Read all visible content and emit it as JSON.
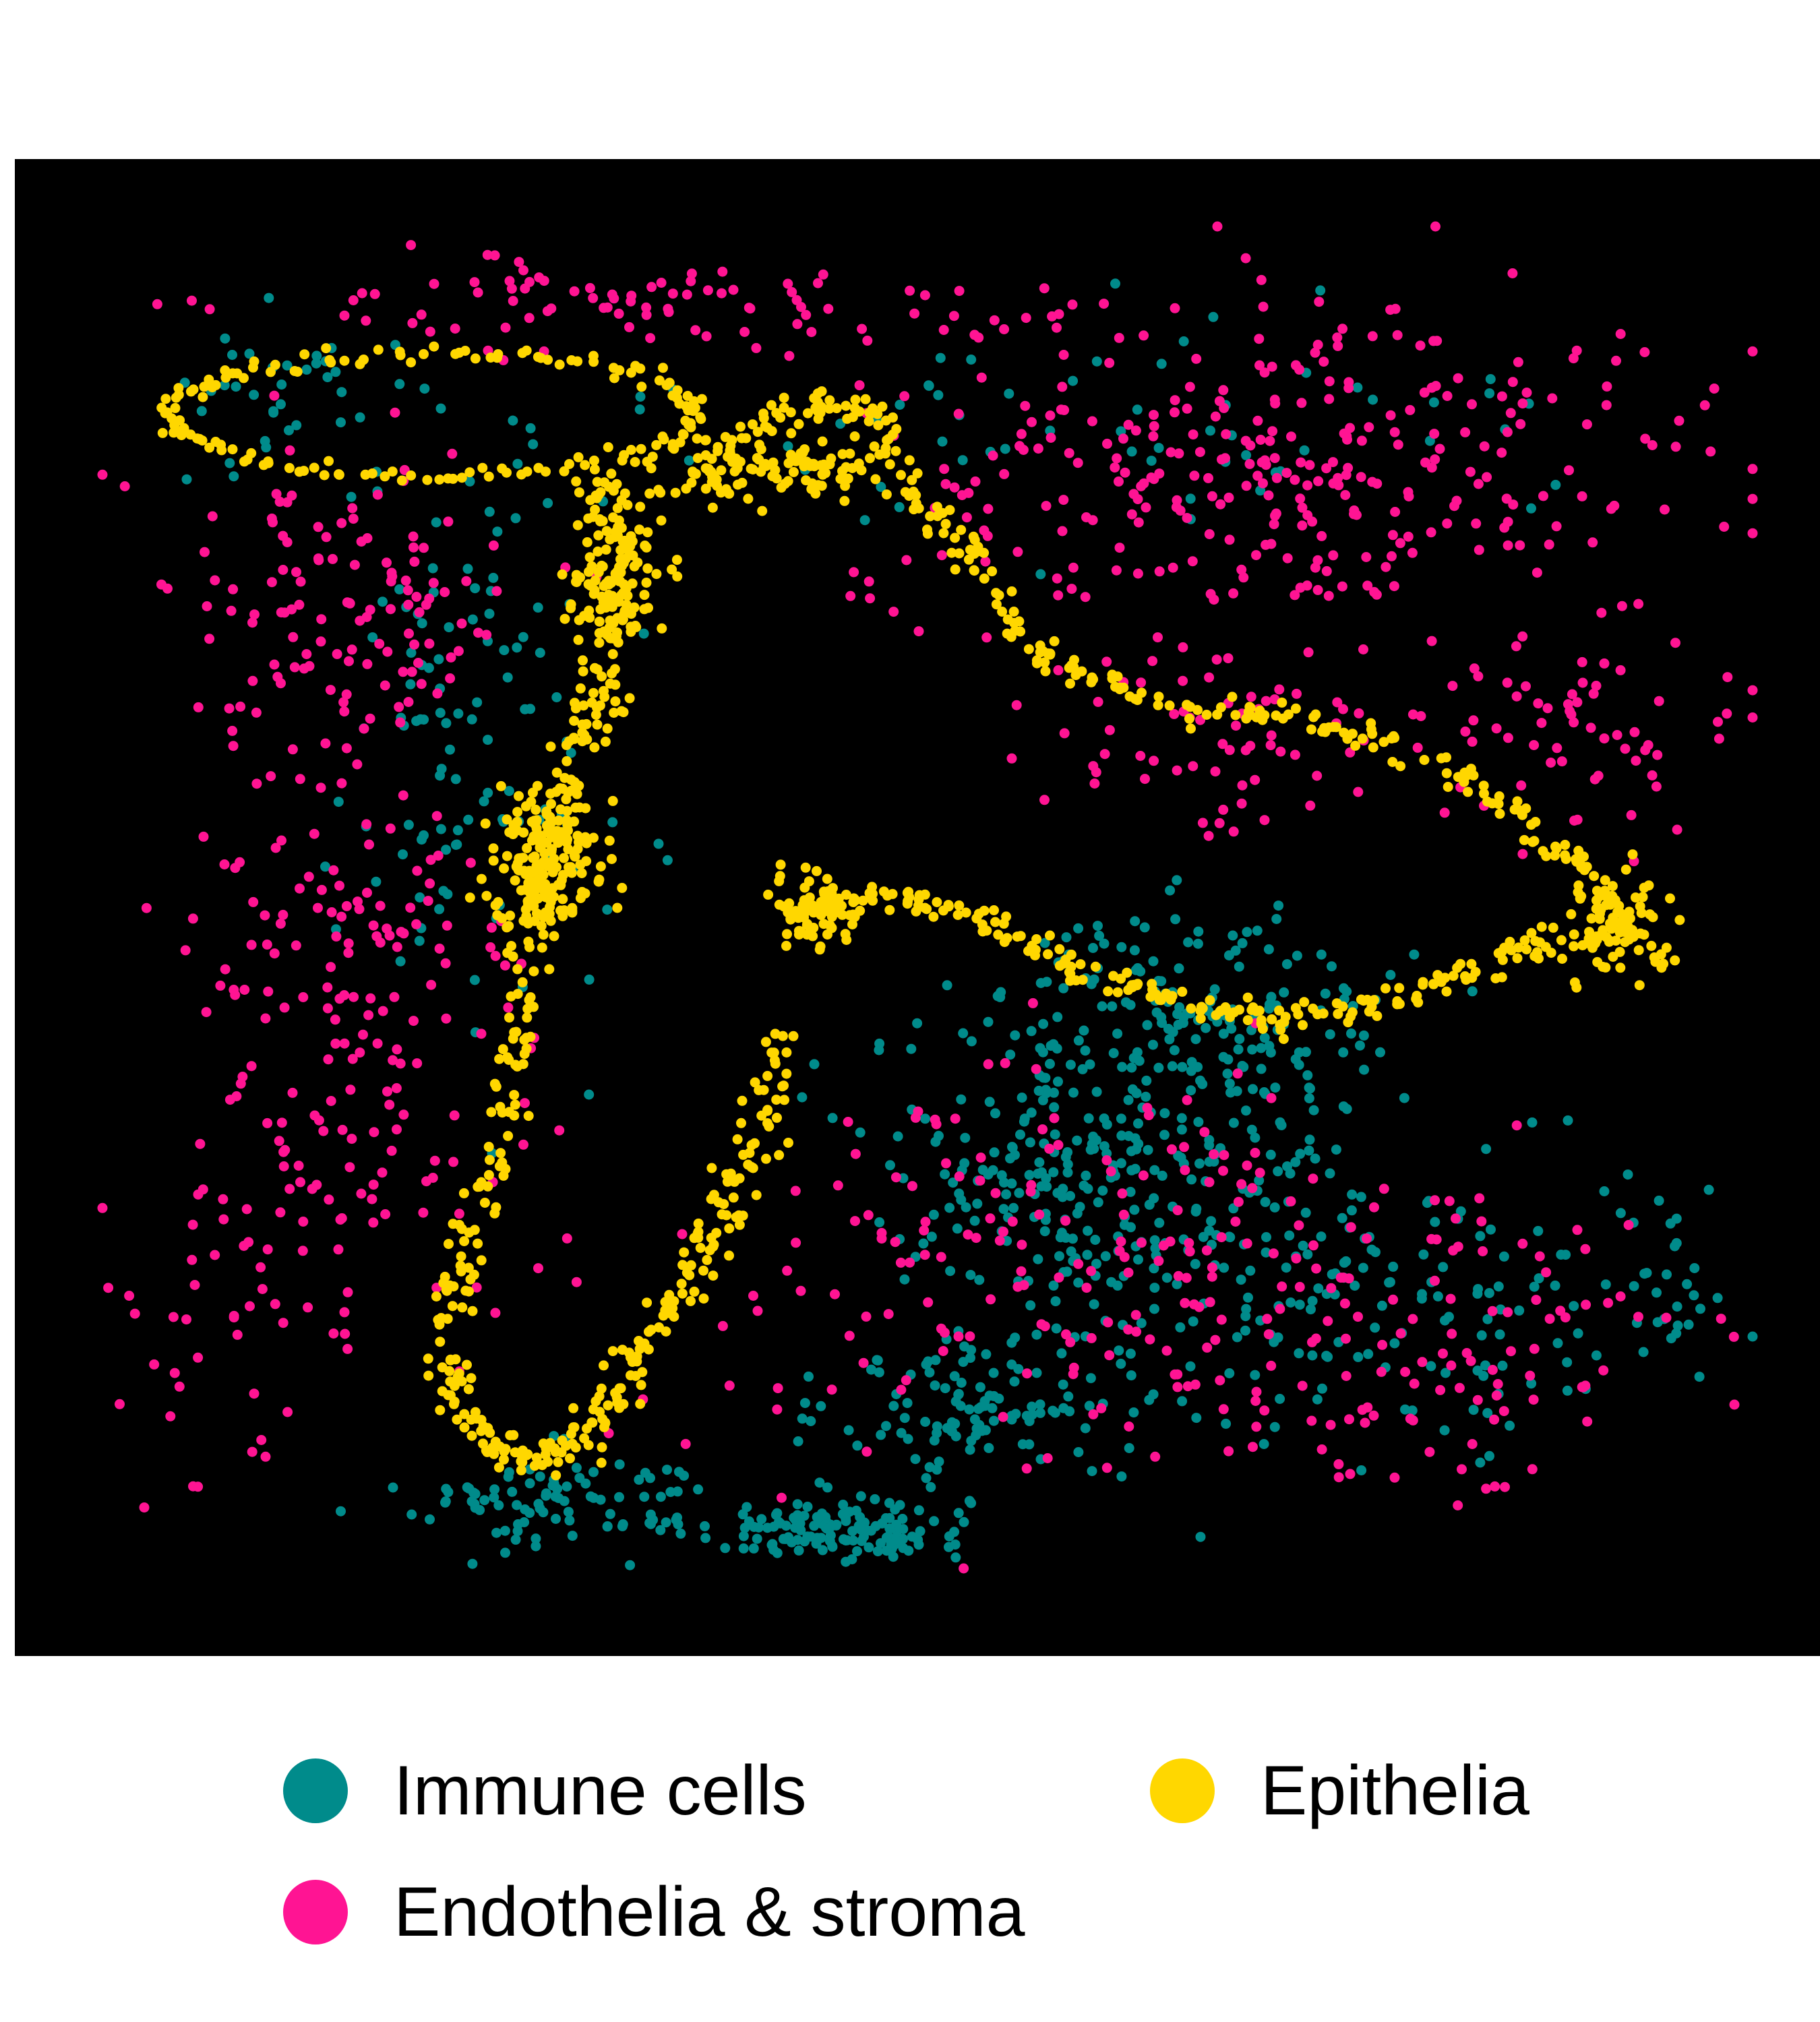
{
  "chart_data": {
    "type": "scatter",
    "title": "",
    "xlabel": "",
    "ylabel": "",
    "xlim": [
      0,
      100
    ],
    "ylim": [
      0,
      100
    ],
    "grid": false,
    "background": "#000000",
    "legend_position": "bottom",
    "series": [
      {
        "name": "Immune cells",
        "color": "#008B8B",
        "clusters": [
          {
            "center": [
              44,
              3
            ],
            "spread": [
              7,
              2
            ],
            "count": 140
          },
          {
            "center": [
              28,
              5
            ],
            "spread": [
              8,
              3
            ],
            "count": 90
          },
          {
            "center": [
              53,
              12
            ],
            "spread": [
              7,
              5
            ],
            "count": 110
          },
          {
            "center": [
              57,
              30
            ],
            "spread": [
              9,
              8
            ],
            "count": 150
          },
          {
            "center": [
              68,
              26
            ],
            "spread": [
              12,
              12
            ],
            "count": 220
          },
          {
            "center": [
              66,
              42
            ],
            "spread": [
              10,
              6
            ],
            "count": 160
          },
          {
            "center": [
              84,
              18
            ],
            "spread": [
              12,
              9
            ],
            "count": 70
          },
          {
            "center": [
              22,
              60
            ],
            "spread": [
              7,
              18
            ],
            "count": 110
          },
          {
            "center": [
              13,
              88
            ],
            "spread": [
              6,
              5
            ],
            "count": 40
          },
          {
            "center": [
              58,
              85
            ],
            "spread": [
              24,
              8
            ],
            "count": 60
          },
          {
            "center": [
              95,
              22
            ],
            "spread": [
              3,
              6
            ],
            "count": 25
          }
        ]
      },
      {
        "name": "Endothelia & stroma",
        "color": "#FF1493",
        "clusters": [
          {
            "center": [
              72,
              82
            ],
            "spread": [
              22,
              10
            ],
            "count": 320
          },
          {
            "center": [
              88,
              62
            ],
            "spread": [
              10,
              6
            ],
            "count": 70
          },
          {
            "center": [
              68,
              62
            ],
            "spread": [
              8,
              6
            ],
            "count": 60
          },
          {
            "center": [
              14,
              72
            ],
            "spread": [
              10,
              10
            ],
            "count": 120
          },
          {
            "center": [
              15,
              40
            ],
            "spread": [
              9,
              22
            ],
            "count": 180
          },
          {
            "center": [
              58,
              22
            ],
            "spread": [
              20,
              12
            ],
            "count": 200
          },
          {
            "center": [
              82,
              16
            ],
            "spread": [
              12,
              10
            ],
            "count": 90
          },
          {
            "center": [
              36,
              94
            ],
            "spread": [
              22,
              3
            ],
            "count": 90
          },
          {
            "center": [
              8,
              20
            ],
            "spread": [
              5,
              12
            ],
            "count": 40
          }
        ]
      },
      {
        "name": "Epithelia",
        "color": "#FFD700",
        "structures": {
          "upper_loop": {
            "center": [
              20,
              86
            ],
            "radii": [
              16,
              4.5
            ],
            "count": 160
          },
          "left_band": [
            [
              30,
              81
            ],
            [
              31,
              76
            ],
            [
              31,
              70
            ],
            [
              30,
              64
            ],
            [
              28,
              59
            ],
            [
              27,
              54
            ],
            [
              26,
              48
            ],
            [
              25,
              40
            ],
            [
              24,
              31
            ],
            [
              22,
              24
            ],
            [
              21,
              17
            ],
            [
              22,
              11
            ],
            [
              25,
              8
            ],
            [
              28,
              9
            ],
            [
              31,
              12
            ],
            [
              33,
              17
            ],
            [
              36,
              22
            ],
            [
              38,
              27
            ],
            [
              40,
              33
            ],
            [
              41,
              40
            ]
          ],
          "upper_arm": [
            [
              33,
              80
            ],
            [
              37,
              82
            ],
            [
              41,
              86
            ],
            [
              44,
              87
            ],
            [
              47,
              86
            ],
            [
              49,
              80
            ],
            [
              52,
              76
            ],
            [
              55,
              72
            ],
            [
              57,
              68
            ],
            [
              61,
              66
            ],
            [
              66,
              64
            ],
            [
              71,
              64
            ],
            [
              76,
              62
            ],
            [
              81,
              60
            ],
            [
              85,
              57
            ],
            [
              88,
              54
            ],
            [
              91,
              51
            ],
            [
              93,
              47
            ]
          ],
          "lower_arm": [
            [
              41,
              48
            ],
            [
              44,
              50
            ],
            [
              48,
              50
            ],
            [
              52,
              49
            ],
            [
              56,
              47
            ],
            [
              60,
              44
            ],
            [
              64,
              43
            ],
            [
              68,
              41
            ],
            [
              72,
              41
            ],
            [
              77,
              42
            ],
            [
              82,
              44
            ],
            [
              86,
              46
            ],
            [
              90,
              47
            ]
          ],
          "blob_left": {
            "center": [
              27,
              53
            ],
            "radii": [
              3.5,
              5
            ],
            "count": 150
          },
          "blob_right": {
            "center": [
              92,
              48
            ],
            "radii": [
              3.5,
              3.5
            ],
            "count": 80
          },
          "blob_elbow": {
            "center": [
              43,
              49
            ],
            "radii": [
              3,
              2.5
            ],
            "count": 60
          },
          "blob_top": {
            "center": [
              42,
              82
            ],
            "radii": [
              8,
              3
            ],
            "count": 100
          },
          "blob_neck": {
            "center": [
              31,
              74
            ],
            "radii": [
              3,
              6
            ],
            "count": 100
          }
        }
      }
    ]
  }
}
